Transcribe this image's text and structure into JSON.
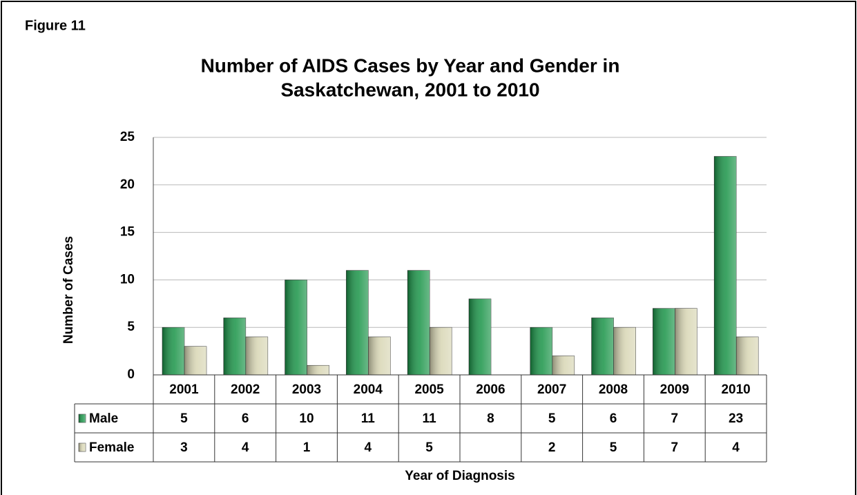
{
  "figure_label": "Figure 11",
  "chart_data": {
    "type": "bar",
    "title": [
      "Number of AIDS Cases by Year and Gender in",
      "Saskatchewan, 2001 to 2010"
    ],
    "x_label": "Year of Diagnosis",
    "y_label": "Number of Cases",
    "categories": [
      "2001",
      "2002",
      "2003",
      "2004",
      "2005",
      "2006",
      "2007",
      "2008",
      "2009",
      "2010"
    ],
    "series": [
      {
        "name": "Male",
        "color": "#1a9448",
        "values": [
          5,
          6,
          10,
          11,
          11,
          8,
          5,
          6,
          7,
          23
        ]
      },
      {
        "name": "Female",
        "color": "#d8d6b4",
        "values": [
          3,
          4,
          1,
          4,
          5,
          null,
          2,
          5,
          7,
          4
        ]
      }
    ],
    "ylim": [
      0,
      25
    ],
    "yticks": [
      0,
      5,
      10,
      15,
      20,
      25
    ],
    "grid": true,
    "data_table": true
  }
}
